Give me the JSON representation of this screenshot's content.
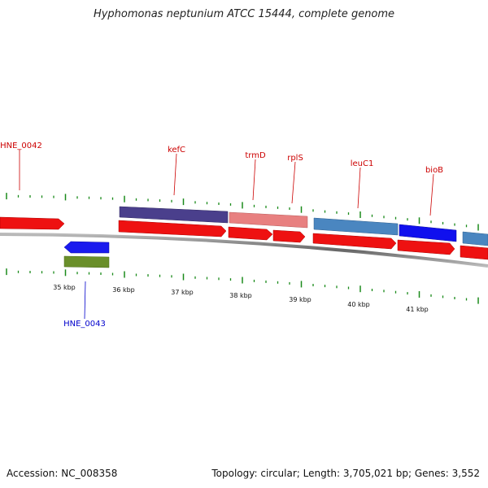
{
  "title": "Hyphomonas neptunium ATCC 15444, complete genome",
  "footer": {
    "accession": "Accession: NC_008358",
    "summary": "Topology: circular; Length: 3,705,021 bp; Genes: 3,552"
  },
  "colors": {
    "cds_forward": "#ee1111",
    "cds_reverse": "#1a1aee",
    "backbone": "#888888",
    "tick": "#1a8a1a",
    "label_forward": "#cc0000",
    "label_reverse": "#0000cc",
    "kefC": "#4a3f8c",
    "trmD": "#e88080",
    "leuC1": "#4a86c0",
    "bioB": "#1010ee",
    "HNE_0043": "#6a8f2a",
    "unnamed_right": "#4a86c0"
  },
  "gene_labels": [
    "HNE_0042",
    "kefC",
    "trmD",
    "rplS",
    "leuC1",
    "bioB",
    "HNE_0043"
  ],
  "kbp_labels": [
    "35 kbp",
    "36 kbp",
    "37 kbp",
    "38 kbp",
    "39 kbp",
    "40 kbp",
    "41 kbp"
  ]
}
